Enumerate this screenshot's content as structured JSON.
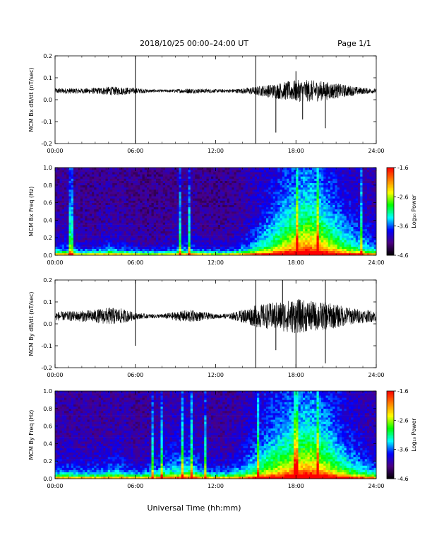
{
  "header": {
    "title": "2018/10/25  00:00–24:00 UT",
    "page": "Page 1/1"
  },
  "xaxis": {
    "label": "Universal Time (hh:mm)",
    "ticks": [
      "00:00",
      "06:00",
      "12:00",
      "18:00",
      "24:00"
    ],
    "range_hours": [
      0,
      24
    ]
  },
  "colorbar": {
    "label": "Log₁₀ Power",
    "ticks": [
      "-1.6",
      "-2.6",
      "-3.6",
      "-4.6"
    ],
    "range": [
      -4.6,
      -1.6
    ],
    "colors": [
      "#000000",
      "#4b0082",
      "#0000ff",
      "#00ffff",
      "#00ff00",
      "#ffff00",
      "#ff8000",
      "#ff0000"
    ]
  },
  "chart_data": [
    {
      "type": "line",
      "ylabel": "MCM Bx dB/dt (nT/sec)",
      "ylim": [
        -0.2,
        0.2
      ],
      "yticks": [
        "0.2",
        "0.1",
        "0.0",
        "-0.1",
        "-0.2"
      ],
      "line_color": "#000000",
      "series": [
        {
          "x_hours": [
            0,
            1,
            2,
            3,
            4,
            5,
            6,
            7,
            8,
            9,
            10,
            11,
            12,
            13,
            14,
            15,
            16,
            17,
            18,
            19,
            20,
            21,
            22,
            23,
            24
          ],
          "center": [
            0.04,
            0.04,
            0.04,
            0.04,
            0.04,
            0.04,
            0.04,
            0.04,
            0.04,
            0.04,
            0.04,
            0.04,
            0.04,
            0.04,
            0.04,
            0.04,
            0.04,
            0.04,
            0.04,
            0.04,
            0.04,
            0.04,
            0.04,
            0.04,
            0.04
          ],
          "amplitude": [
            0.012,
            0.013,
            0.012,
            0.014,
            0.02,
            0.018,
            0.014,
            0.008,
            0.006,
            0.008,
            0.012,
            0.01,
            0.008,
            0.008,
            0.012,
            0.02,
            0.03,
            0.04,
            0.05,
            0.05,
            0.045,
            0.035,
            0.025,
            0.015,
            0.01
          ],
          "spikes": [
            [
              6.0,
              0.2
            ],
            [
              6.0,
              -0.2
            ],
            [
              15.0,
              0.2
            ],
            [
              15.0,
              -0.2
            ],
            [
              16.5,
              -0.15
            ],
            [
              18.0,
              0.13
            ],
            [
              18.5,
              -0.09
            ],
            [
              20.2,
              -0.13
            ],
            [
              21.0,
              0.06
            ]
          ]
        }
      ]
    },
    {
      "type": "heatmap",
      "ylabel": "MCM Bx Freq (Hz)",
      "ylim": [
        0.0,
        1.0
      ],
      "yticks": [
        "1.0",
        "0.8",
        "0.6",
        "0.4",
        "0.2",
        "0.0"
      ],
      "activity_hours": [
        0,
        1,
        2,
        3,
        4,
        5,
        6,
        7,
        8,
        9,
        10,
        11,
        12,
        13,
        14,
        15,
        16,
        17,
        18,
        19,
        20,
        21,
        22,
        23,
        24
      ],
      "activity": [
        0.25,
        0.3,
        0.2,
        0.2,
        0.28,
        0.25,
        0.2,
        0.15,
        0.18,
        0.25,
        0.3,
        0.22,
        0.18,
        0.2,
        0.3,
        0.45,
        0.6,
        0.75,
        0.9,
        0.95,
        0.85,
        0.7,
        0.55,
        0.45,
        0.35
      ],
      "vertical_streaks_hours": [
        1.2,
        9.3,
        10.1,
        18.1,
        19.7,
        22.9
      ]
    },
    {
      "type": "line",
      "ylabel": "MCM By dB/dt (nT/sec)",
      "ylim": [
        -0.2,
        0.2
      ],
      "yticks": [
        "0.2",
        "0.1",
        "0.0",
        "-0.1",
        "-0.2"
      ],
      "line_color": "#000000",
      "series": [
        {
          "x_hours": [
            0,
            1,
            2,
            3,
            4,
            5,
            6,
            7,
            8,
            9,
            10,
            11,
            12,
            13,
            14,
            15,
            16,
            17,
            18,
            19,
            20,
            21,
            22,
            23,
            24
          ],
          "center": [
            0.035,
            0.035,
            0.035,
            0.035,
            0.035,
            0.035,
            0.035,
            0.035,
            0.035,
            0.035,
            0.035,
            0.035,
            0.035,
            0.035,
            0.035,
            0.035,
            0.035,
            0.035,
            0.035,
            0.035,
            0.035,
            0.035,
            0.035,
            0.035,
            0.035
          ],
          "amplitude": [
            0.02,
            0.022,
            0.025,
            0.03,
            0.04,
            0.035,
            0.015,
            0.01,
            0.01,
            0.02,
            0.03,
            0.02,
            0.01,
            0.012,
            0.03,
            0.05,
            0.06,
            0.07,
            0.08,
            0.07,
            0.065,
            0.055,
            0.04,
            0.03,
            0.025
          ],
          "spikes": [
            [
              6.0,
              0.2
            ],
            [
              6.0,
              -0.1
            ],
            [
              15.0,
              0.2
            ],
            [
              15.0,
              -0.2
            ],
            [
              17.0,
              0.2
            ],
            [
              18.0,
              -0.2
            ],
            [
              20.2,
              0.2
            ],
            [
              20.2,
              -0.18
            ],
            [
              16.5,
              -0.12
            ]
          ]
        }
      ]
    },
    {
      "type": "heatmap",
      "ylabel": "MCM By Freq (Hz)",
      "ylim": [
        0.0,
        1.0
      ],
      "yticks": [
        "1.0",
        "0.8",
        "0.6",
        "0.4",
        "0.2",
        "0.0"
      ],
      "activity_hours": [
        0,
        1,
        2,
        3,
        4,
        5,
        6,
        7,
        8,
        9,
        10,
        11,
        12,
        13,
        14,
        15,
        16,
        17,
        18,
        19,
        20,
        21,
        22,
        23,
        24
      ],
      "activity": [
        0.3,
        0.32,
        0.3,
        0.3,
        0.35,
        0.35,
        0.25,
        0.3,
        0.4,
        0.45,
        0.5,
        0.35,
        0.28,
        0.3,
        0.4,
        0.55,
        0.7,
        0.8,
        0.9,
        0.95,
        0.85,
        0.7,
        0.55,
        0.45,
        0.35
      ],
      "vertical_streaks_hours": [
        7.3,
        8.0,
        9.5,
        10.2,
        11.2,
        15.2,
        18.0,
        19.7
      ]
    }
  ]
}
